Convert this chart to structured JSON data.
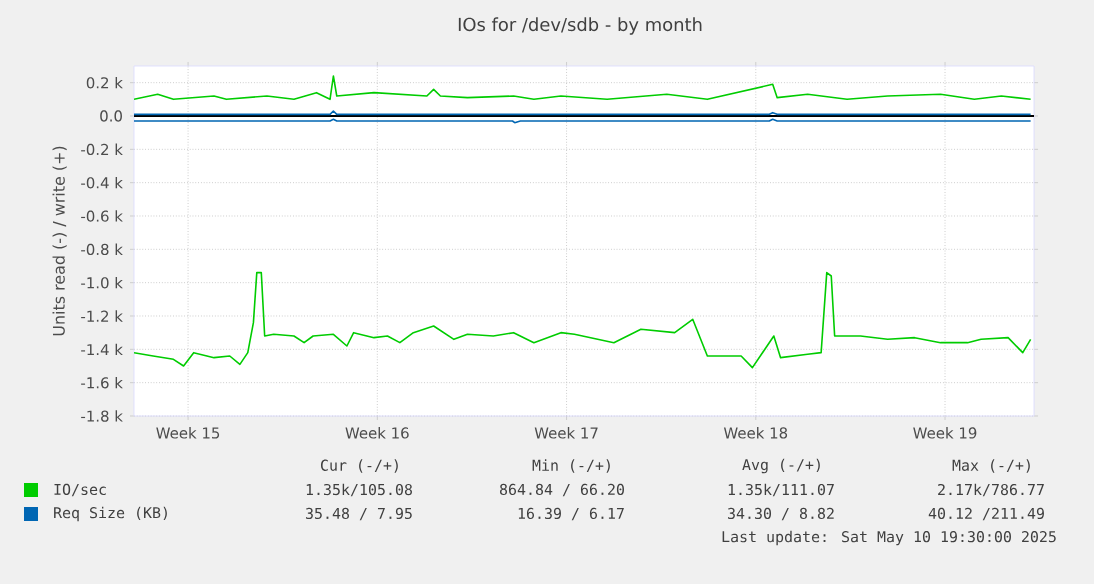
{
  "chart_data": {
    "type": "line",
    "title": "IOs for /dev/sdb - by month",
    "ylabel": "Units read (-) / write (+)",
    "xlim": [
      "2025-04-07T12:00",
      "2025-05-10T19:00"
    ],
    "ylim": [
      -1800,
      300
    ],
    "xticks": [
      {
        "value": "2025-04-09T12:00",
        "label": "Week 15"
      },
      {
        "value": "2025-04-16T12:00",
        "label": "Week 16"
      },
      {
        "value": "2025-04-23T12:00",
        "label": "Week 17"
      },
      {
        "value": "2025-04-30T12:00",
        "label": "Week 18"
      },
      {
        "value": "2025-05-07T12:00",
        "label": "Week 19"
      }
    ],
    "yticks": [
      {
        "value": -1800,
        "label": "-1.8 k"
      },
      {
        "value": -1600,
        "label": "-1.6 k"
      },
      {
        "value": -1400,
        "label": "-1.4 k"
      },
      {
        "value": -1200,
        "label": "-1.2 k"
      },
      {
        "value": -1000,
        "label": "-1.0 k"
      },
      {
        "value": -800,
        "label": "-0.8 k"
      },
      {
        "value": -600,
        "label": "-0.6 k"
      },
      {
        "value": -400,
        "label": "-0.4 k"
      },
      {
        "value": -200,
        "label": "-0.2 k"
      },
      {
        "value": 0,
        "label": "0.0"
      },
      {
        "value": 200,
        "label": "0.2 k"
      }
    ],
    "grid": true,
    "legend": "bottom",
    "ref_lines": [
      {
        "axis": "y",
        "value": 0,
        "color": "#000000"
      }
    ],
    "series": [
      {
        "name": "IO/sec",
        "color": "#00cc00",
        "x": [
          "2025-04-07T12:00",
          "2025-04-08T09:00",
          "2025-04-08T23:00",
          "2025-04-10T11:00",
          "2025-04-10T22:00",
          "2025-04-12T10:00",
          "2025-04-13T10:00",
          "2025-04-14T06:00",
          "2025-04-14T18:00",
          "2025-04-14T21:00",
          "2025-04-15T00:00",
          "2025-04-16T09:00",
          "2025-04-18T08:00",
          "2025-04-18T14:00",
          "2025-04-18T20:00",
          "2025-04-19T20:00",
          "2025-04-21T13:00",
          "2025-04-22T07:00",
          "2025-04-23T07:00",
          "2025-04-25T00:00",
          "2025-04-27T05:00",
          "2025-04-28T17:00",
          "2025-05-01T03:00",
          "2025-05-01T07:00",
          "2025-05-02T10:00",
          "2025-05-03T21:00",
          "2025-05-05T09:00",
          "2025-05-07T08:00",
          "2025-05-08T14:00",
          "2025-05-09T14:00",
          "2025-05-10T16:00"
        ],
        "values": [
          100,
          130,
          100,
          120,
          100,
          120,
          100,
          140,
          100,
          240,
          120,
          140,
          120,
          160,
          120,
          110,
          120,
          100,
          120,
          100,
          130,
          100,
          190,
          110,
          130,
          100,
          120,
          130,
          100,
          120,
          100
        ]
      },
      {
        "color": "#00cc00",
        "x": [
          "2025-04-07T12:00",
          "2025-04-08T05:00",
          "2025-04-08T23:00",
          "2025-04-09T08:00",
          "2025-04-09T17:00",
          "2025-04-10T11:00",
          "2025-04-11T01:00",
          "2025-04-11T10:00",
          "2025-04-11T17:00",
          "2025-04-11T22:00",
          "2025-04-12T01:00",
          "2025-04-12T05:00",
          "2025-04-12T08:00",
          "2025-04-12T16:00",
          "2025-04-13T10:00",
          "2025-04-13T19:00",
          "2025-04-14T03:00",
          "2025-04-14T21:00",
          "2025-04-15T09:00",
          "2025-04-15T15:00",
          "2025-04-16T09:00",
          "2025-04-16T21:00",
          "2025-04-17T08:00",
          "2025-04-17T20:00",
          "2025-04-18T14:00",
          "2025-04-19T08:00",
          "2025-04-19T20:00",
          "2025-04-20T19:00",
          "2025-04-21T13:00",
          "2025-04-22T07:00",
          "2025-04-23T07:00",
          "2025-04-23T19:00",
          "2025-04-25T06:00",
          "2025-04-26T06:00",
          "2025-04-27T12:00",
          "2025-04-28T04:00",
          "2025-04-28T17:00",
          "2025-04-29T23:00",
          "2025-04-30T09:00",
          "2025-05-01T04:00",
          "2025-05-01T10:00",
          "2025-05-02T10:00",
          "2025-05-02T22:00",
          "2025-05-03T03:00",
          "2025-05-03T07:00",
          "2025-05-03T10:00",
          "2025-05-04T09:00",
          "2025-05-05T09:00",
          "2025-05-06T09:00",
          "2025-05-07T08:00",
          "2025-05-08T08:00",
          "2025-05-08T20:00",
          "2025-05-09T20:00",
          "2025-05-10T09:00",
          "2025-05-10T16:00"
        ],
        "values": [
          -1420,
          -1440,
          -1460,
          -1500,
          -1420,
          -1450,
          -1440,
          -1490,
          -1420,
          -1240,
          -940,
          -940,
          -1320,
          -1310,
          -1320,
          -1360,
          -1320,
          -1310,
          -1380,
          -1300,
          -1330,
          -1320,
          -1360,
          -1300,
          -1260,
          -1340,
          -1310,
          -1320,
          -1300,
          -1360,
          -1300,
          -1310,
          -1360,
          -1280,
          -1300,
          -1220,
          -1440,
          -1440,
          -1510,
          -1320,
          -1450,
          -1430,
          -1420,
          -940,
          -960,
          -1320,
          -1320,
          -1340,
          -1330,
          -1360,
          -1360,
          -1340,
          -1330,
          -1420,
          -1340
        ]
      },
      {
        "name": "Req Size (KB)",
        "color": "#0066b3",
        "x": [
          "2025-04-07T12:00",
          "2025-04-14T18:00",
          "2025-04-14T21:00",
          "2025-04-15T00:00",
          "2025-05-01T00:00",
          "2025-05-01T03:00",
          "2025-05-01T07:00",
          "2025-05-10T16:00"
        ],
        "values": [
          10,
          10,
          30,
          10,
          10,
          20,
          10,
          10
        ]
      },
      {
        "color": "#0066b3",
        "x": [
          "2025-04-07T12:00",
          "2025-04-14T18:00",
          "2025-04-14T21:00",
          "2025-04-15T00:00",
          "2025-04-21T12:00",
          "2025-04-21T14:00",
          "2025-04-21T19:00",
          "2025-05-01T00:00",
          "2025-05-01T03:00",
          "2025-05-01T07:00",
          "2025-05-10T16:00"
        ],
        "values": [
          -30,
          -30,
          -20,
          -30,
          -30,
          -40,
          -30,
          -30,
          -20,
          -30,
          -30
        ]
      }
    ],
    "annotations": [
      "Cur (-/+)",
      "Min (-/+)",
      "Avg (-/+)",
      "Max (-/+)",
      "1.35k/105.08",
      "864.84 / 66.20",
      "1.35k/111.07",
      "2.17k/786.77",
      "35.48 /  7.95",
      "16.39 /  6.17",
      "34.30 /  8.82",
      "40.12 /211.49",
      "Last update: Sat May 10 19:30:00 2025"
    ]
  }
}
